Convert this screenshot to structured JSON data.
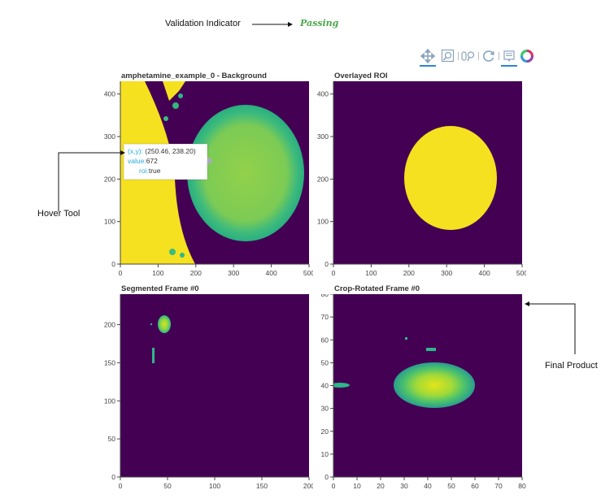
{
  "annotations": {
    "validation_label": "Validation Indicator",
    "validation_status": "Passing",
    "hover_tool_label": "Hover Tool",
    "final_product_label": "Final Product"
  },
  "toolbar": {
    "tools": [
      "pan-icon",
      "box-zoom-icon",
      "wheel-zoom-icon",
      "reset-icon",
      "hover-icon",
      "bokeh-logo-icon"
    ]
  },
  "plots": {
    "background": {
      "title": "amphetamine_example_0 - Background",
      "xticks": [
        "0",
        "100",
        "200",
        "300",
        "400",
        "500"
      ],
      "yticks": [
        "0",
        "100",
        "200",
        "300",
        "400"
      ]
    },
    "overlay": {
      "title": "Overlayed ROI",
      "xticks": [
        "0",
        "100",
        "200",
        "300",
        "400",
        "500"
      ],
      "yticks": [
        "0",
        "100",
        "200",
        "300",
        "400"
      ]
    },
    "segmented": {
      "title": "Segmented Frame #0",
      "xticks": [
        "0",
        "50",
        "100",
        "150",
        "200"
      ],
      "yticks": [
        "0",
        "50",
        "100",
        "150",
        "200"
      ]
    },
    "crop": {
      "title": "Crop-Rotated Frame #0",
      "xticks": [
        "0",
        "10",
        "20",
        "30",
        "40",
        "50",
        "60",
        "70",
        "80"
      ],
      "yticks": [
        "0",
        "10",
        "20",
        "30",
        "40",
        "50",
        "60",
        "70",
        "80"
      ]
    }
  },
  "hover": {
    "xy_key": "(x,y)",
    "xy_value": "(250.46, 238.20)",
    "value_key": "value",
    "value_value": "672",
    "roi_key": "roi",
    "roi_value": "true"
  },
  "colors": {
    "viridis_dark": "#440154",
    "viridis_yellow": "#f5e11f",
    "viridis_green": "#8fcf4c",
    "viridis_teal": "#2db78a",
    "passing": "#4aa84a",
    "tool_active": "#2c86d3"
  }
}
